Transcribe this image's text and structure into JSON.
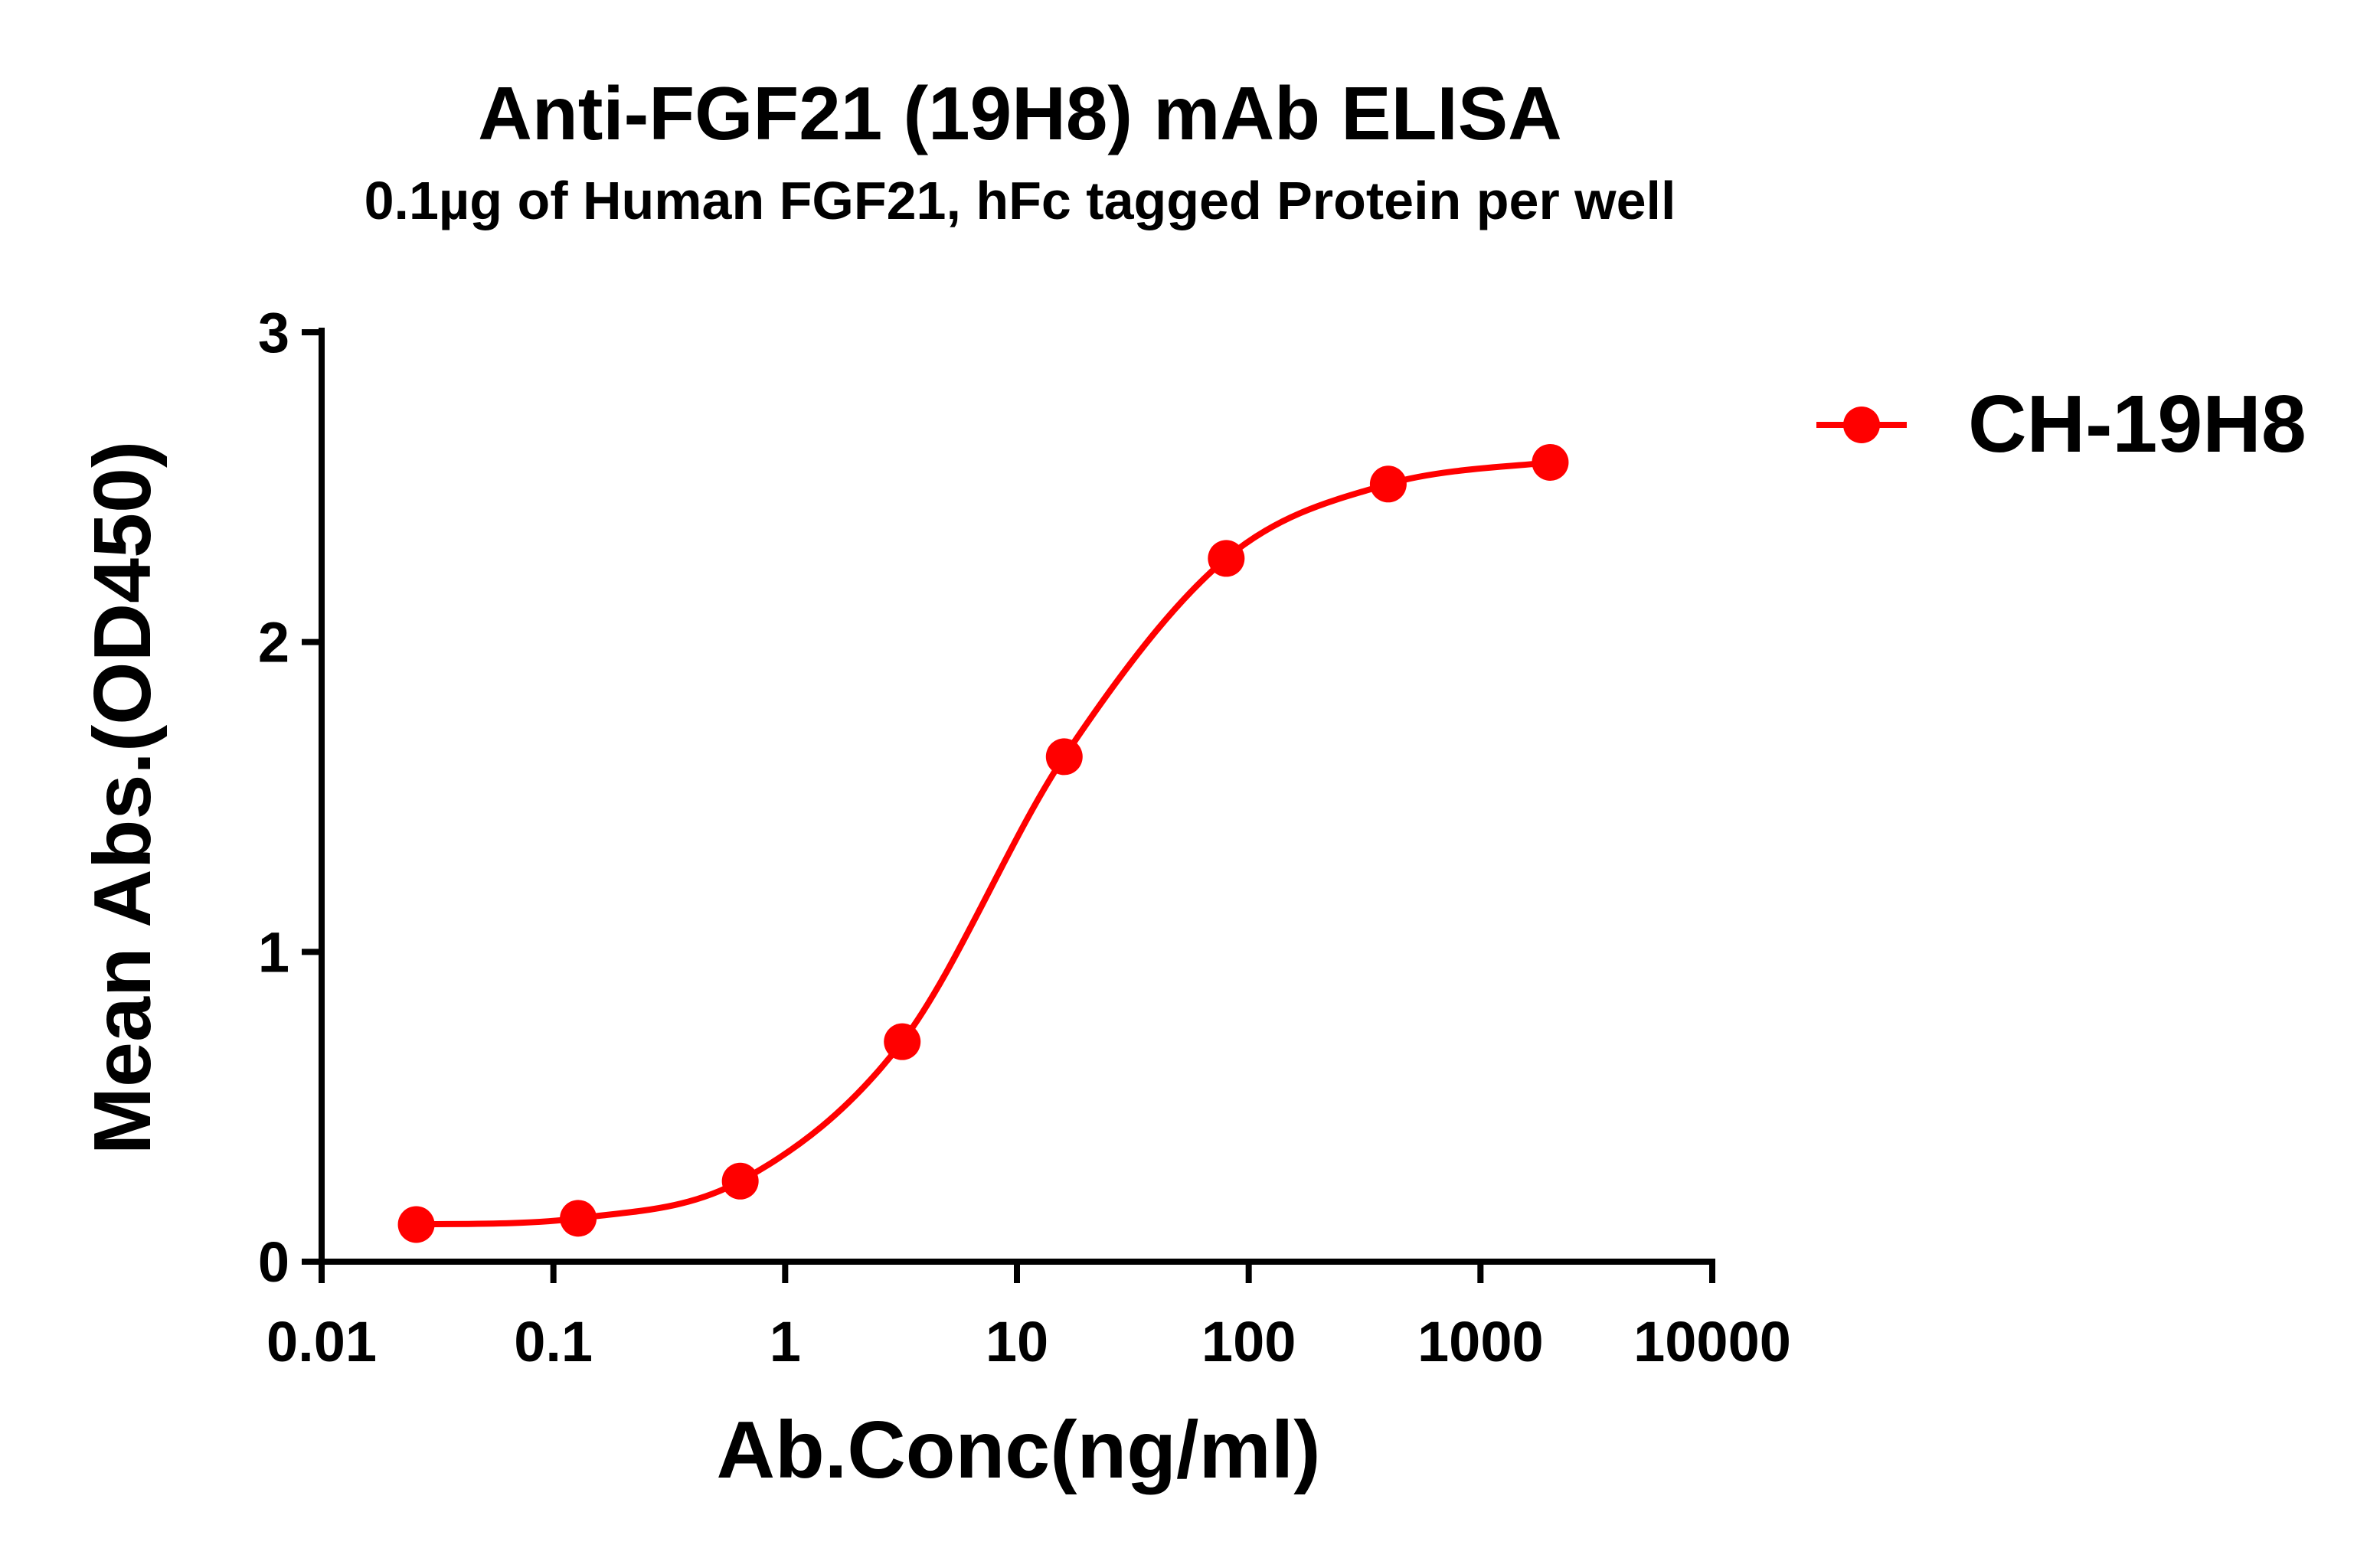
{
  "chart_data": {
    "type": "line",
    "title": "Anti-FGF21 (19H8) mAb ELISA",
    "subtitle": "0.1µg of Human FGF21, hFc tagged Protein per well",
    "xlabel": "Ab.Conc(ng/ml)",
    "ylabel": "Mean Abs.(OD450)",
    "x_scale": "log",
    "xlim": [
      0.01,
      10000
    ],
    "ylim": [
      0,
      3
    ],
    "x_ticks": [
      "0.01",
      "0.1",
      "1",
      "10",
      "100",
      "1000",
      "10000"
    ],
    "y_ticks": [
      "0",
      "1",
      "2",
      "3"
    ],
    "grid": false,
    "legend_position": "top-right",
    "series": [
      {
        "name": "CH-19H8",
        "color": "#ff0000",
        "marker": "circle",
        "fit": "four-parameter logistic curve",
        "x": [
          0.0256,
          0.128,
          0.64,
          3.2,
          16,
          80,
          400,
          2000
        ],
        "y": [
          0.12,
          0.14,
          0.26,
          0.71,
          1.63,
          2.27,
          2.51,
          2.58
        ]
      }
    ]
  }
}
